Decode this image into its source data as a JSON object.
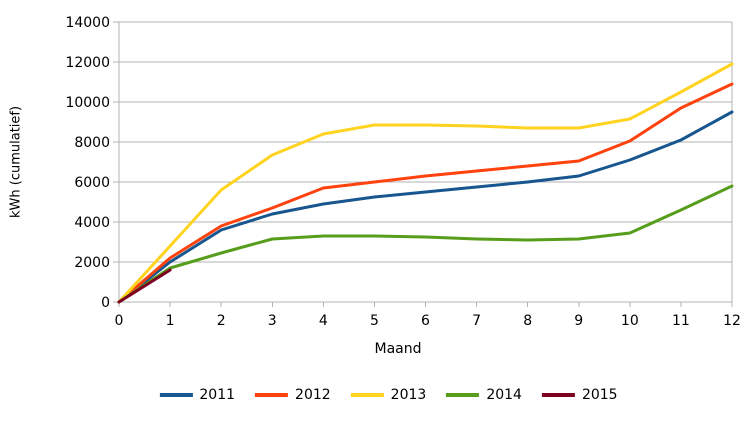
{
  "chart_data": {
    "type": "line",
    "title": "",
    "xlabel": "Maand",
    "ylabel": "kWh (cumulatief)",
    "x": [
      0,
      1,
      2,
      3,
      4,
      5,
      6,
      7,
      8,
      9,
      10,
      11,
      12
    ],
    "x_tick_labels": [
      "0",
      "1",
      "2",
      "3",
      "4",
      "5",
      "6",
      "7",
      "8",
      "9",
      "10",
      "11",
      "12"
    ],
    "y_tick_labels": [
      "0",
      "2000",
      "4000",
      "6000",
      "8000",
      "10000",
      "12000",
      "14000"
    ],
    "xlim": [
      0,
      12
    ],
    "ylim": [
      0,
      14000
    ],
    "y_tick_step": 2000,
    "grid": "horizontal-only",
    "legend_position": "bottom-center",
    "series": [
      {
        "name": "2011",
        "color": "#17568f",
        "values": [
          0,
          2000,
          3600,
          4400,
          4900,
          5250,
          5500,
          5750,
          6000,
          6300,
          7100,
          8100,
          9500
        ]
      },
      {
        "name": "2012",
        "color": "#ff420e",
        "values": [
          0,
          2200,
          3800,
          4700,
          5700,
          6000,
          6300,
          6550,
          6800,
          7050,
          8050,
          9700,
          10900
        ]
      },
      {
        "name": "2013",
        "color": "#ffd320",
        "values": [
          0,
          2800,
          5600,
          7350,
          8400,
          8850,
          8850,
          8800,
          8700,
          8700,
          9150,
          10500,
          11900
        ]
      },
      {
        "name": "2014",
        "color": "#579d1c",
        "values": [
          0,
          1700,
          2450,
          3150,
          3300,
          3300,
          3250,
          3150,
          3100,
          3150,
          3450,
          4600,
          5800
        ]
      },
      {
        "name": "2015",
        "color": "#7e0021",
        "values": [
          0,
          1600
        ]
      }
    ],
    "colors": {
      "grid": "#b3b3b3",
      "axis": "#b3b3b3",
      "text": "#000000",
      "background": "#ffffff"
    }
  }
}
